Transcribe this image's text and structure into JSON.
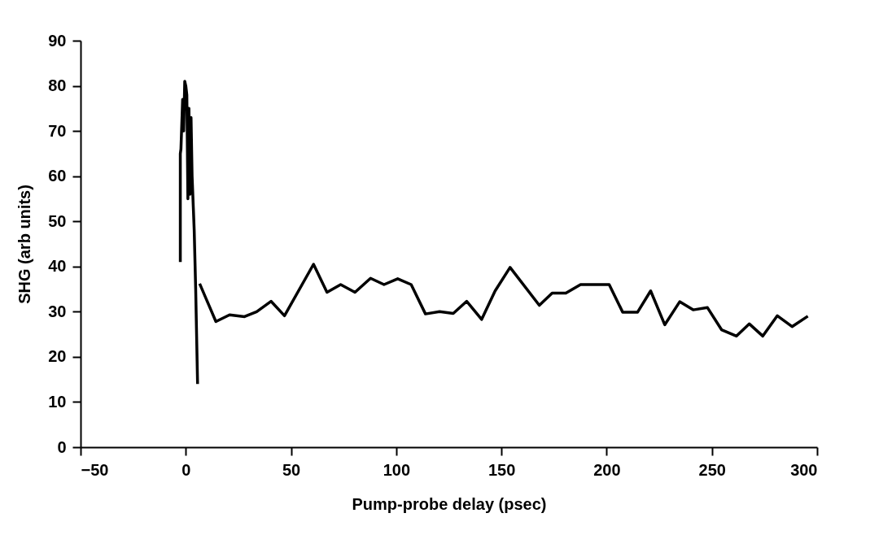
{
  "chart_data": {
    "type": "line",
    "xlabel": "Pump-probe  delay  (psec)",
    "ylabel": "SHG  (arb  units)",
    "xlim": [
      -50,
      300
    ],
    "xticks": [
      -50,
      0,
      50,
      100,
      150,
      200,
      250,
      300
    ],
    "ylim": [
      0,
      90
    ],
    "yticks": [
      0,
      10,
      20,
      30,
      40,
      50,
      60,
      70,
      80,
      90
    ],
    "grid": false,
    "legend": false,
    "marker": "none",
    "line_style": "solid",
    "series": [
      {
        "color": "#000000",
        "x": [
          -2.6,
          -2.6,
          -2.3,
          -1.5,
          -1.0,
          -0.5,
          0.0,
          0.5,
          1.0,
          1.5,
          2.0,
          2.5,
          3.0,
          4.0,
          4.7,
          5.6,
          6.1,
          6.6,
          14.3,
          20.8,
          27.9,
          33.7,
          40.5,
          46.9,
          60.7,
          67.1,
          73.6,
          80.4,
          87.8,
          94.2,
          100.7,
          107.1,
          113.9,
          120.6,
          127.1,
          133.5,
          140.6,
          147.0,
          154.1,
          168.0,
          174.1,
          180.6,
          187.6,
          201.2,
          207.6,
          214.7,
          220.9,
          227.6,
          234.7,
          241.1,
          247.9,
          254.6,
          261.7,
          267.8,
          274.2,
          281.1,
          288.1,
          295.6
        ],
        "values": [
          41,
          65,
          66,
          77,
          70,
          81,
          80,
          78,
          55,
          75,
          56,
          73,
          60,
          48,
          35,
          14,
          null,
          36.2,
          27.8,
          29.3,
          28.9,
          30.0,
          32.3,
          29.1,
          40.5,
          34.3,
          36.0,
          34.3,
          37.4,
          36.0,
          37.3,
          36.0,
          29.5,
          30.0,
          29.6,
          32.3,
          28.3,
          34.6,
          39.8,
          31.4,
          34.1,
          34.1,
          36.0,
          36.0,
          29.9,
          29.9,
          34.6,
          27.1,
          32.2,
          30.4,
          30.9,
          26.0,
          24.6,
          27.3,
          24.6,
          29.1,
          26.7,
          29.0
        ]
      }
    ]
  }
}
